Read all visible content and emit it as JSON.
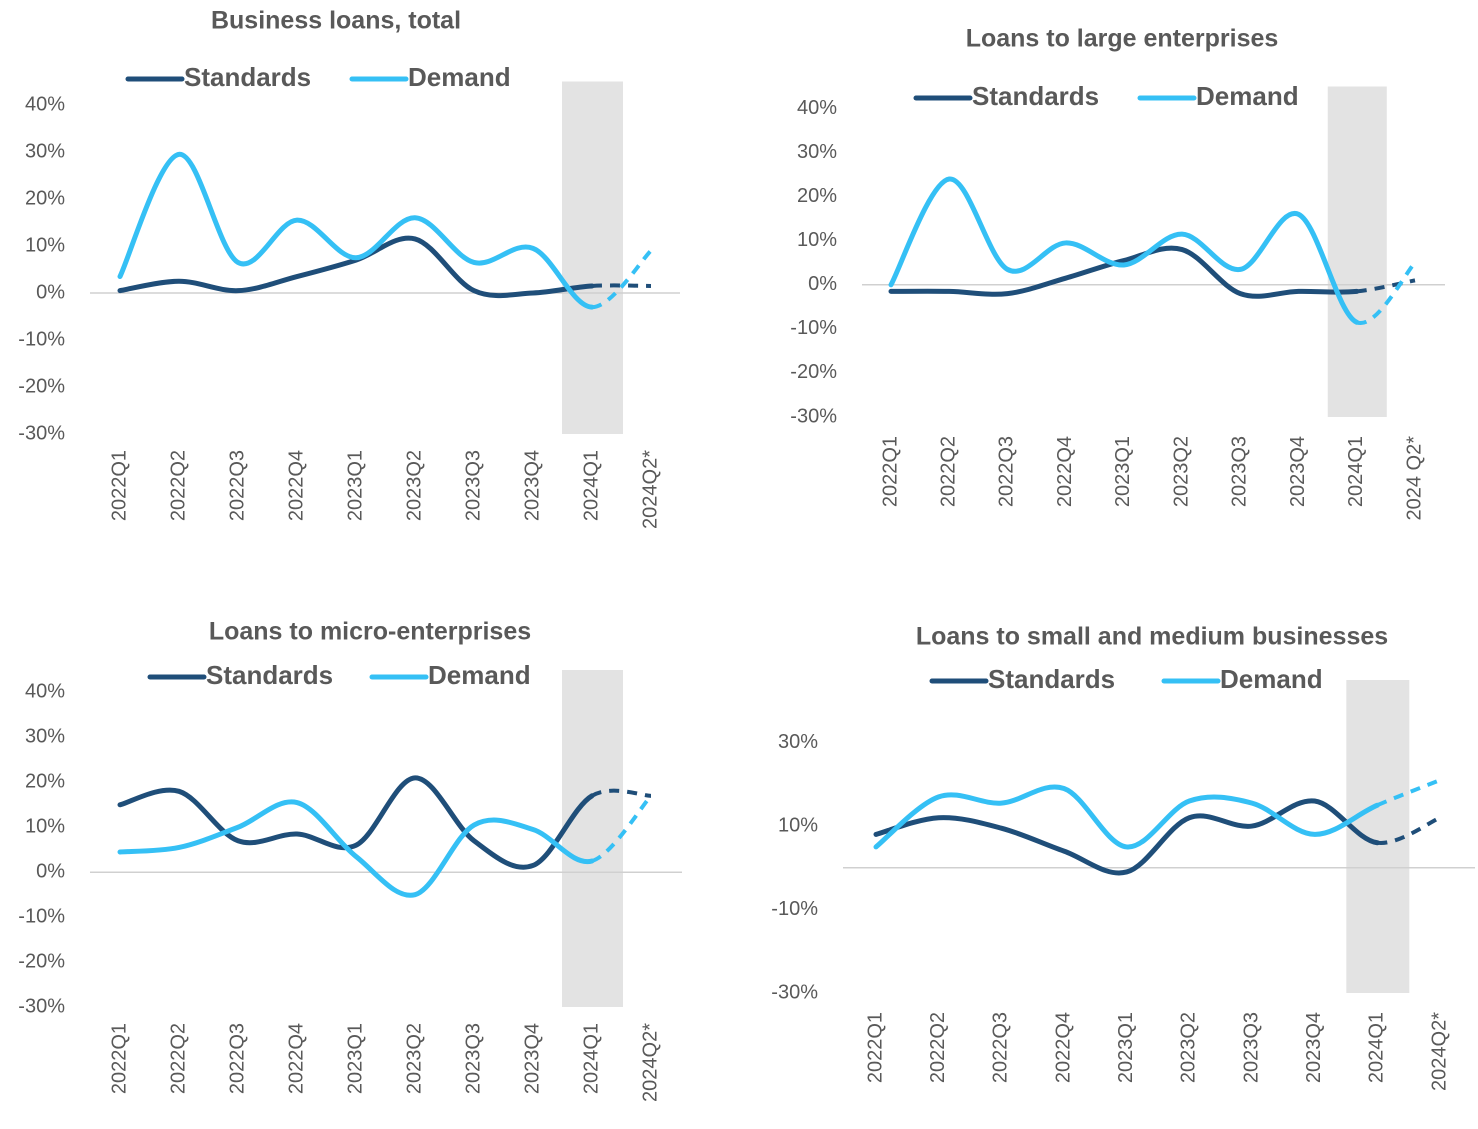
{
  "chart_data": [
    {
      "type": "line",
      "title": "Business loans, total",
      "categories": [
        "2022Q1",
        "2022Q2",
        "2022Q3",
        "2022Q4",
        "2023Q1",
        "2023Q2",
        "2023Q3",
        "2023Q4",
        "2024Q1",
        "2024Q2*"
      ],
      "series": [
        {
          "name": "Standards",
          "color": "#1f4e79",
          "values": [
            0.5,
            2.5,
            0.5,
            3.5,
            7,
            11.5,
            0.5,
            0,
            1.5,
            1.5
          ]
        },
        {
          "name": "Demand",
          "color": "#35c0f5",
          "values": [
            3.5,
            29.5,
            6.5,
            15.5,
            7.5,
            16,
            6.5,
            9.5,
            -3,
            9
          ]
        }
      ],
      "ylim": [
        -30,
        45
      ],
      "yticks": [
        {
          "value": 40,
          "label": "40%"
        },
        {
          "value": 30,
          "label": "30%"
        },
        {
          "value": 20,
          "label": "20%"
        },
        {
          "value": 10,
          "label": "10%"
        },
        {
          "value": 0,
          "label": "0%"
        },
        {
          "value": -10,
          "label": "-10%"
        },
        {
          "value": -20,
          "label": "-20%"
        },
        {
          "value": -30,
          "label": "-30%"
        }
      ],
      "legend": "top"
    },
    {
      "type": "line",
      "title": "Loans to large enterprises",
      "categories": [
        "2022Q1",
        "2022Q2",
        "2022Q3",
        "2022Q4",
        "2023Q1",
        "2023Q2",
        "2023Q3",
        "2023Q4",
        "2024Q1",
        "2024 Q2*"
      ],
      "series": [
        {
          "name": "Standards",
          "color": "#1f4e79",
          "values": [
            -1.5,
            -1.5,
            -2,
            1.5,
            5.5,
            8,
            -2,
            -1.5,
            -1.5,
            1
          ]
        },
        {
          "name": "Demand",
          "color": "#35c0f5",
          "values": [
            0,
            24,
            3.5,
            9.5,
            4.5,
            11.5,
            3.5,
            16,
            -8.5,
            5
          ]
        }
      ],
      "ylim": [
        -30,
        45
      ],
      "yticks": [
        {
          "value": 40,
          "label": "40%"
        },
        {
          "value": 30,
          "label": "30%"
        },
        {
          "value": 20,
          "label": "20%"
        },
        {
          "value": 10,
          "label": "10%"
        },
        {
          "value": 0,
          "label": "0%"
        },
        {
          "value": -10,
          "label": "-10%"
        },
        {
          "value": -20,
          "label": "-20%"
        },
        {
          "value": -30,
          "label": "-30%"
        }
      ],
      "legend": "top"
    },
    {
      "type": "line",
      "title": "Loans to micro-enterprises",
      "categories": [
        "2022Q1",
        "2022Q2",
        "2022Q3",
        "2022Q4",
        "2023Q1",
        "2023Q2",
        "2023Q3",
        "2023Q4",
        "2024Q1",
        "2024Q2*"
      ],
      "series": [
        {
          "name": "Standards",
          "color": "#1f4e79",
          "values": [
            15,
            18,
            7,
            8.5,
            6,
            21,
            7,
            1.5,
            17,
            17
          ]
        },
        {
          "name": "Demand",
          "color": "#35c0f5",
          "values": [
            4.5,
            5.5,
            10,
            15.5,
            3.5,
            -5,
            10.5,
            9.5,
            2.5,
            17
          ]
        }
      ],
      "ylim": [
        -30,
        45
      ],
      "yticks": [
        {
          "value": 40,
          "label": "40%"
        },
        {
          "value": 30,
          "label": "30%"
        },
        {
          "value": 20,
          "label": "20%"
        },
        {
          "value": 10,
          "label": "10%"
        },
        {
          "value": 0,
          "label": "0%"
        },
        {
          "value": -10,
          "label": "-10%"
        },
        {
          "value": -20,
          "label": "-20%"
        },
        {
          "value": -30,
          "label": "-30%"
        }
      ],
      "legend": "top"
    },
    {
      "type": "line",
      "title": "Loans to small and medium businesses",
      "categories": [
        "2022Q1",
        "2022Q2",
        "2022Q3",
        "2022Q4",
        "2023Q1",
        "2023Q2",
        "2023Q3",
        "2023Q4",
        "2024Q1",
        "2024Q2*"
      ],
      "series": [
        {
          "name": "Standards",
          "color": "#1f4e79",
          "values": [
            8,
            12,
            9.5,
            4,
            -1,
            12,
            10,
            16,
            6,
            12
          ]
        },
        {
          "name": "Demand",
          "color": "#35c0f5",
          "values": [
            5,
            17,
            15.5,
            19,
            5,
            16,
            15.5,
            8,
            15,
            21
          ]
        }
      ],
      "ylim": [
        -30,
        45
      ],
      "yticks": [
        {
          "value": 30,
          "label": "30%"
        },
        {
          "value": 10,
          "label": "10%"
        },
        {
          "value": -10,
          "label": "-10%"
        },
        {
          "value": -30,
          "label": "-30%"
        }
      ],
      "legend": "top"
    }
  ]
}
